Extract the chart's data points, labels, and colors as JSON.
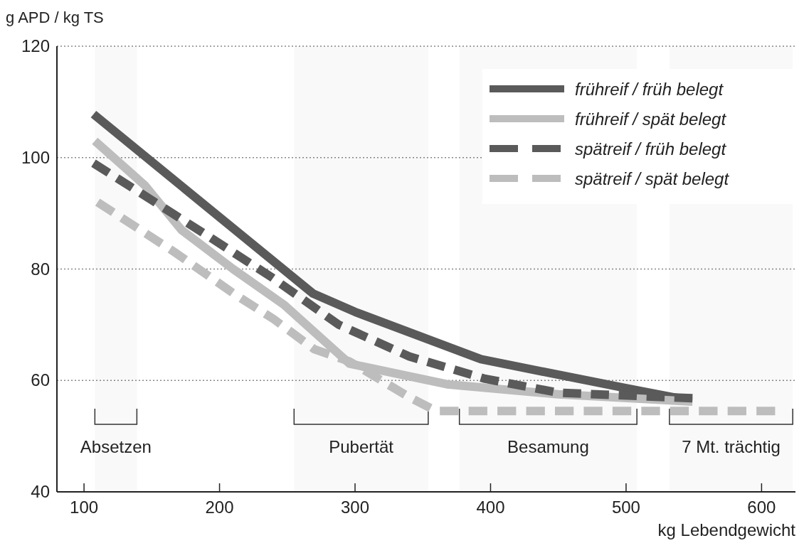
{
  "chart_data": {
    "type": "line",
    "ylabel": "g APD / kg TS",
    "xlabel": "kg Lebendgewicht",
    "xlim": [
      80,
      625
    ],
    "xticks": [
      100,
      200,
      300,
      400,
      500,
      600
    ],
    "ylim": [
      40,
      120
    ],
    "yticks": [
      40,
      60,
      80,
      100,
      120
    ],
    "grid": "y",
    "legend": "top right",
    "series": [
      {
        "name": "frühreif / früh belegt",
        "color": "#5a5a5a",
        "line_style": "solid",
        "x": [
          107,
          269,
          300,
          393,
          500,
          547
        ],
        "values": [
          107.8,
          75.6,
          72.3,
          63.8,
          58.6,
          56.4
        ]
      },
      {
        "name": "frühreif / spät belegt",
        "color": "#bdbdbd",
        "line_style": "solid",
        "x": [
          108,
          145,
          172,
          210,
          248,
          296,
          368,
          450,
          549
        ],
        "values": [
          103,
          95,
          87,
          80,
          73.5,
          63,
          59.3,
          57.5,
          56.2
        ]
      },
      {
        "name": "spätreif / früh belegt",
        "color": "#5a5a5a",
        "line_style": "dashed",
        "x": [
          107,
          142,
          191,
          238,
          288,
          340,
          396,
          450,
          549
        ],
        "values": [
          99,
          93.6,
          86,
          78.6,
          70,
          64.3,
          60.3,
          57.8,
          56.8
        ]
      },
      {
        "name": "spätreif / spät belegt",
        "color": "#bdbdbd",
        "line_style": "dashed",
        "x": [
          110,
          167,
          211,
          240,
          270,
          296,
          340,
          360,
          610
        ],
        "values": [
          92,
          83,
          75.5,
          71,
          65.6,
          63.4,
          57,
          54.5,
          54.5
        ]
      }
    ],
    "bands": [
      {
        "axis": "x",
        "from": 108,
        "to": 139,
        "label": "Absetzen"
      },
      {
        "axis": "x",
        "from": 255,
        "to": 354,
        "label": "Pubertät"
      },
      {
        "axis": "x",
        "from": 377,
        "to": 508,
        "label": "Besamung"
      },
      {
        "axis": "x",
        "from": 532,
        "to": 623,
        "label": "7 Mt. trächtig"
      }
    ]
  }
}
